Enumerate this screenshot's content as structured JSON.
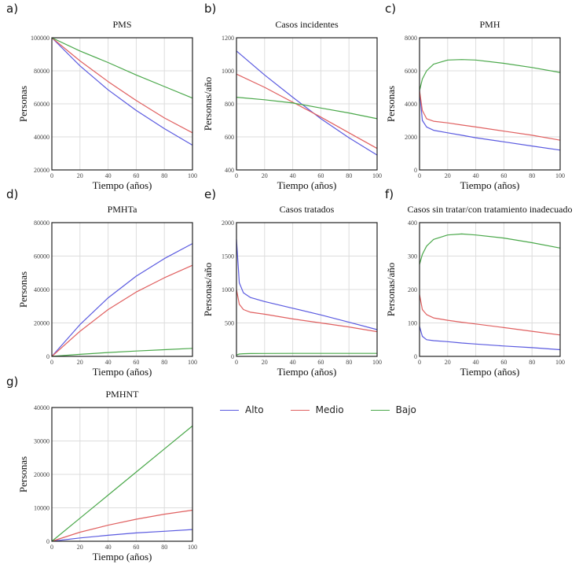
{
  "legend": [
    {
      "name": "Alto",
      "color": "#5a5ae0"
    },
    {
      "name": "Medio",
      "color": "#e06060"
    },
    {
      "name": "Bajo",
      "color": "#4aa84a"
    }
  ],
  "chart_data": [
    {
      "panel": "a)",
      "type": "line",
      "title": "PMS",
      "xlabel": "Tiempo (años)",
      "ylabel": "Personas",
      "xlim": [
        0,
        100
      ],
      "ylim": [
        20000,
        100000
      ],
      "xticks": [
        0,
        20,
        40,
        60,
        80,
        100
      ],
      "yticks": [
        20000,
        40000,
        60000,
        80000,
        100000
      ],
      "grid": true,
      "x": [
        0,
        20,
        40,
        60,
        80,
        100
      ],
      "series": [
        {
          "name": "Alto",
          "values": [
            100000,
            83000,
            68500,
            56000,
            45000,
            35000
          ]
        },
        {
          "name": "Medio",
          "values": [
            100000,
            86000,
            73500,
            62000,
            51500,
            42500
          ]
        },
        {
          "name": "Bajo",
          "values": [
            100000,
            92000,
            85000,
            77500,
            70500,
            63500
          ]
        }
      ]
    },
    {
      "panel": "b)",
      "type": "line",
      "title": "Casos incidentes",
      "xlabel": "Tiempo (años)",
      "ylabel": "Personas/año",
      "xlim": [
        0,
        100
      ],
      "ylim": [
        400,
        1200
      ],
      "xticks": [
        0,
        20,
        40,
        60,
        80,
        100
      ],
      "yticks": [
        400,
        600,
        800,
        1000,
        1200
      ],
      "grid": true,
      "x": [
        0,
        20,
        40,
        60,
        80,
        100
      ],
      "series": [
        {
          "name": "Alto",
          "values": [
            1120,
            975,
            840,
            710,
            595,
            490
          ]
        },
        {
          "name": "Medio",
          "values": [
            980,
            900,
            810,
            720,
            625,
            530
          ]
        },
        {
          "name": "Bajo",
          "values": [
            840,
            825,
            805,
            775,
            745,
            710
          ]
        }
      ]
    },
    {
      "panel": "c)",
      "type": "line",
      "title": "PMH",
      "xlabel": "Tiempo (años)",
      "ylabel": "Personas",
      "xlim": [
        0,
        100
      ],
      "ylim": [
        0,
        8000
      ],
      "xticks": [
        0,
        20,
        40,
        60,
        80,
        100
      ],
      "yticks": [
        0,
        2000,
        4000,
        6000,
        8000
      ],
      "grid": true,
      "x": [
        0,
        2,
        5,
        10,
        20,
        30,
        40,
        60,
        80,
        100
      ],
      "series": [
        {
          "name": "Alto",
          "values": [
            4800,
            3000,
            2600,
            2400,
            2250,
            2100,
            1950,
            1700,
            1450,
            1200
          ]
        },
        {
          "name": "Medio",
          "values": [
            4800,
            3600,
            3100,
            2950,
            2850,
            2720,
            2600,
            2350,
            2100,
            1800
          ]
        },
        {
          "name": "Bajo",
          "values": [
            4800,
            5500,
            6000,
            6400,
            6650,
            6680,
            6650,
            6450,
            6200,
            5900
          ]
        }
      ]
    },
    {
      "panel": "d)",
      "type": "line",
      "title": "PMHTa",
      "xlabel": "Tiempo (años)",
      "ylabel": "Personas",
      "xlim": [
        0,
        100
      ],
      "ylim": [
        0,
        80000
      ],
      "xticks": [
        0,
        20,
        40,
        60,
        80,
        100
      ],
      "yticks": [
        0,
        20000,
        40000,
        60000,
        80000
      ],
      "grid": true,
      "x": [
        0,
        20,
        40,
        60,
        80,
        100
      ],
      "series": [
        {
          "name": "Alto",
          "values": [
            0,
            19000,
            35000,
            48000,
            58500,
            67500
          ]
        },
        {
          "name": "Medio",
          "values": [
            0,
            15000,
            28000,
            38500,
            47000,
            54500
          ]
        },
        {
          "name": "Bajo",
          "values": [
            0,
            1200,
            2300,
            3200,
            4000,
            4800
          ]
        }
      ]
    },
    {
      "panel": "e)",
      "type": "line",
      "title": "Casos tratados",
      "xlabel": "Tiempo (años)",
      "ylabel": "Personas/año",
      "xlim": [
        0,
        100
      ],
      "ylim": [
        0,
        2000
      ],
      "xticks": [
        0,
        20,
        40,
        60,
        80,
        100
      ],
      "yticks": [
        0,
        500,
        1000,
        1500,
        2000
      ],
      "grid": true,
      "x": [
        0,
        2,
        5,
        10,
        20,
        40,
        60,
        80,
        100
      ],
      "series": [
        {
          "name": "Alto",
          "values": [
            1750,
            1100,
            950,
            880,
            820,
            720,
            620,
            510,
            400
          ]
        },
        {
          "name": "Medio",
          "values": [
            1000,
            780,
            700,
            660,
            630,
            560,
            500,
            440,
            370
          ]
        },
        {
          "name": "Bajo",
          "values": [
            20,
            35,
            40,
            42,
            44,
            45,
            45,
            45,
            45
          ]
        }
      ]
    },
    {
      "panel": "f)",
      "type": "line",
      "title": "Casos sin tratar/con tratamiento inadecuado",
      "xlabel": "Tiempo (años)",
      "ylabel": "Personas/año",
      "xlim": [
        0,
        100
      ],
      "ylim": [
        0,
        400
      ],
      "xticks": [
        0,
        20,
        40,
        60,
        80,
        100
      ],
      "yticks": [
        0,
        100,
        200,
        300,
        400
      ],
      "grid": true,
      "x": [
        0,
        2,
        5,
        10,
        20,
        30,
        40,
        60,
        80,
        100
      ],
      "series": [
        {
          "name": "Alto",
          "values": [
            90,
            60,
            50,
            47,
            44,
            40,
            37,
            31,
            26,
            20
          ]
        },
        {
          "name": "Medio",
          "values": [
            185,
            140,
            125,
            115,
            108,
            102,
            97,
            86,
            75,
            64
          ]
        },
        {
          "name": "Bajo",
          "values": [
            275,
            305,
            330,
            350,
            363,
            366,
            363,
            354,
            340,
            324
          ]
        }
      ]
    },
    {
      "panel": "g)",
      "type": "line",
      "title": "PMHNT",
      "xlabel": "Tiempo (años)",
      "ylabel": "Personas",
      "xlim": [
        0,
        100
      ],
      "ylim": [
        0,
        40000
      ],
      "xticks": [
        0,
        20,
        40,
        60,
        80,
        100
      ],
      "yticks": [
        0,
        10000,
        20000,
        30000,
        40000
      ],
      "grid": true,
      "x": [
        0,
        20,
        40,
        60,
        80,
        100
      ],
      "series": [
        {
          "name": "Alto",
          "values": [
            0,
            1000,
            1800,
            2500,
            3000,
            3500
          ]
        },
        {
          "name": "Medio",
          "values": [
            0,
            2700,
            4800,
            6600,
            8100,
            9300
          ]
        },
        {
          "name": "Bajo",
          "values": [
            0,
            6900,
            13800,
            20700,
            27600,
            34500
          ]
        }
      ]
    }
  ]
}
